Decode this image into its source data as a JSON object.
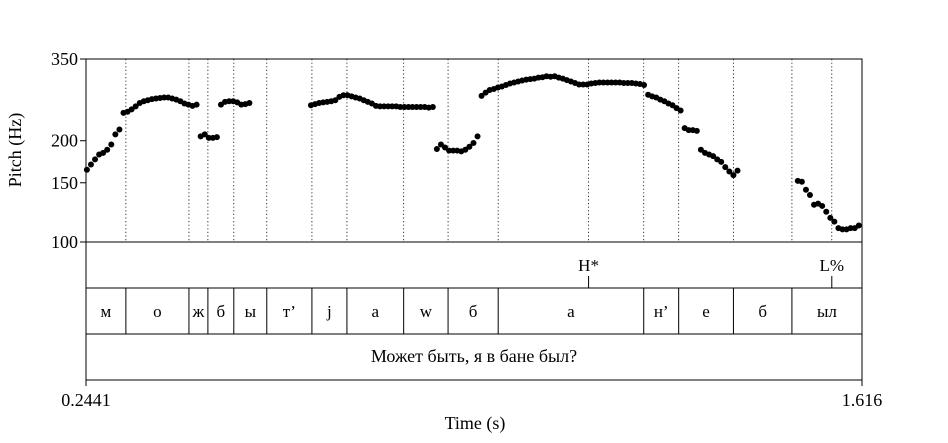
{
  "chart_data": {
    "type": "scatter",
    "ylabel": "Pitch (Hz)",
    "xlabel": "Time (s)",
    "xlim": [
      0.2441,
      1.616
    ],
    "ylim": [
      100,
      350
    ],
    "y_ticks": [
      "100",
      "150",
      "200",
      "350"
    ],
    "x_tick_labels": {
      "start": "0.2441",
      "end": "1.616"
    },
    "sentence": "Может быть, я в бане был?",
    "tones": [
      {
        "label": "H*",
        "time": 1.1326
      },
      {
        "label": "L%",
        "time": 1.5626
      }
    ],
    "segments": [
      {
        "label": "м",
        "start": 0.2441,
        "end": 0.3146
      },
      {
        "label": "о",
        "start": 0.3146,
        "end": 0.4261
      },
      {
        "label": "ж",
        "start": 0.4261,
        "end": 0.4596
      },
      {
        "label": "б",
        "start": 0.4596,
        "end": 0.5054
      },
      {
        "label": "ы",
        "start": 0.5054,
        "end": 0.5637
      },
      {
        "label": "т’",
        "start": 0.5637,
        "end": 0.6435
      },
      {
        "label": "j",
        "start": 0.6435,
        "end": 0.7054
      },
      {
        "label": "а",
        "start": 0.7054,
        "end": 0.8057
      },
      {
        "label": "w",
        "start": 0.8057,
        "end": 0.8842
      },
      {
        "label": "б",
        "start": 0.8842,
        "end": 0.9728
      },
      {
        "label": "а",
        "start": 0.9728,
        "end": 1.2301
      },
      {
        "label": "н’",
        "start": 1.2301,
        "end": 1.2919
      },
      {
        "label": "е",
        "start": 1.2919,
        "end": 1.3887
      },
      {
        "label": "б",
        "start": 1.3887,
        "end": 1.4921
      },
      {
        "label": "ыл",
        "start": 1.4921,
        "end": 1.616
      }
    ],
    "points": [
      [
        0.2457,
        164
      ],
      [
        0.2529,
        170
      ],
      [
        0.2601,
        176
      ],
      [
        0.2673,
        182
      ],
      [
        0.2744,
        184
      ],
      [
        0.2816,
        188
      ],
      [
        0.2888,
        195
      ],
      [
        0.296,
        209
      ],
      [
        0.3032,
        216
      ],
      [
        0.3104,
        242
      ],
      [
        0.3175,
        244
      ],
      [
        0.3247,
        248
      ],
      [
        0.3319,
        253
      ],
      [
        0.3391,
        259
      ],
      [
        0.3463,
        262
      ],
      [
        0.3534,
        264
      ],
      [
        0.3606,
        266
      ],
      [
        0.3678,
        267
      ],
      [
        0.375,
        268
      ],
      [
        0.3822,
        269
      ],
      [
        0.3894,
        269
      ],
      [
        0.3965,
        267
      ],
      [
        0.4037,
        265
      ],
      [
        0.4109,
        262
      ],
      [
        0.4181,
        258
      ],
      [
        0.4253,
        256
      ],
      [
        0.4324,
        254
      ],
      [
        0.4396,
        256
      ],
      [
        0.4468,
        206
      ],
      [
        0.454,
        209
      ],
      [
        0.4612,
        204
      ],
      [
        0.4684,
        204
      ],
      [
        0.4755,
        205
      ],
      [
        0.4827,
        256
      ],
      [
        0.4899,
        261
      ],
      [
        0.4971,
        262
      ],
      [
        0.5043,
        262
      ],
      [
        0.5114,
        260
      ],
      [
        0.5186,
        256
      ],
      [
        0.5258,
        257
      ],
      [
        0.533,
        259
      ],
      [
        0.6418,
        255
      ],
      [
        0.649,
        257
      ],
      [
        0.6562,
        259
      ],
      [
        0.6634,
        260
      ],
      [
        0.6705,
        261
      ],
      [
        0.6777,
        262
      ],
      [
        0.6849,
        264
      ],
      [
        0.6921,
        270
      ],
      [
        0.6993,
        273
      ],
      [
        0.7064,
        273
      ],
      [
        0.7136,
        271
      ],
      [
        0.7208,
        269
      ],
      [
        0.728,
        267
      ],
      [
        0.7352,
        264
      ],
      [
        0.7423,
        261
      ],
      [
        0.7495,
        258
      ],
      [
        0.7567,
        254
      ],
      [
        0.7639,
        253
      ],
      [
        0.7711,
        253
      ],
      [
        0.7783,
        253
      ],
      [
        0.7854,
        253
      ],
      [
        0.7926,
        253
      ],
      [
        0.7998,
        252
      ],
      [
        0.807,
        252
      ],
      [
        0.8142,
        252
      ],
      [
        0.8213,
        252
      ],
      [
        0.8285,
        252
      ],
      [
        0.8357,
        252
      ],
      [
        0.8429,
        252
      ],
      [
        0.8501,
        251
      ],
      [
        0.8573,
        252
      ],
      [
        0.8644,
        189
      ],
      [
        0.8716,
        195
      ],
      [
        0.8788,
        191
      ],
      [
        0.886,
        187
      ],
      [
        0.8932,
        187
      ],
      [
        0.9003,
        187
      ],
      [
        0.9075,
        186
      ],
      [
        0.9147,
        188
      ],
      [
        0.9219,
        192
      ],
      [
        0.9291,
        197
      ],
      [
        0.9363,
        206
      ],
      [
        0.9434,
        272
      ],
      [
        0.9506,
        278
      ],
      [
        0.9578,
        283
      ],
      [
        0.965,
        285
      ],
      [
        0.9722,
        288
      ],
      [
        0.9793,
        290
      ],
      [
        0.9865,
        293
      ],
      [
        0.9937,
        296
      ],
      [
        1.0009,
        298
      ],
      [
        1.0081,
        300
      ],
      [
        1.0152,
        302
      ],
      [
        1.0224,
        304
      ],
      [
        1.0296,
        305
      ],
      [
        1.0368,
        306
      ],
      [
        1.044,
        308
      ],
      [
        1.0512,
        309
      ],
      [
        1.0583,
        311
      ],
      [
        1.0655,
        310
      ],
      [
        1.0727,
        311
      ],
      [
        1.0799,
        308
      ],
      [
        1.0871,
        306
      ],
      [
        1.0942,
        303
      ],
      [
        1.1014,
        300
      ],
      [
        1.1086,
        297
      ],
      [
        1.1158,
        294
      ],
      [
        1.123,
        294
      ],
      [
        1.1301,
        294
      ],
      [
        1.1373,
        296
      ],
      [
        1.1445,
        297
      ],
      [
        1.1517,
        298
      ],
      [
        1.1589,
        298
      ],
      [
        1.1661,
        298
      ],
      [
        1.1732,
        298
      ],
      [
        1.1804,
        298
      ],
      [
        1.1876,
        298
      ],
      [
        1.1948,
        297
      ],
      [
        1.202,
        297
      ],
      [
        1.2091,
        297
      ],
      [
        1.2163,
        296
      ],
      [
        1.2235,
        295
      ],
      [
        1.2307,
        293
      ],
      [
        1.2379,
        274
      ],
      [
        1.245,
        271
      ],
      [
        1.2522,
        269
      ],
      [
        1.2594,
        265
      ],
      [
        1.2666,
        262
      ],
      [
        1.2738,
        258
      ],
      [
        1.281,
        255
      ],
      [
        1.2881,
        250
      ],
      [
        1.2953,
        246
      ],
      [
        1.3025,
        218
      ],
      [
        1.3097,
        215
      ],
      [
        1.3169,
        215
      ],
      [
        1.324,
        214
      ],
      [
        1.3312,
        188
      ],
      [
        1.3384,
        184
      ],
      [
        1.3456,
        182
      ],
      [
        1.3528,
        180
      ],
      [
        1.36,
        176
      ],
      [
        1.3671,
        173
      ],
      [
        1.3743,
        167
      ],
      [
        1.3815,
        162
      ],
      [
        1.3887,
        158
      ],
      [
        1.3959,
        163
      ],
      [
        1.5025,
        152
      ],
      [
        1.5097,
        151
      ],
      [
        1.5169,
        143
      ],
      [
        1.524,
        138
      ],
      [
        1.5312,
        129
      ],
      [
        1.5384,
        130
      ],
      [
        1.5456,
        128
      ],
      [
        1.5528,
        123
      ],
      [
        1.56,
        118
      ],
      [
        1.5671,
        115
      ],
      [
        1.5743,
        110
      ],
      [
        1.5815,
        109
      ],
      [
        1.5887,
        109
      ],
      [
        1.5959,
        110
      ],
      [
        1.6031,
        110
      ],
      [
        1.6103,
        112
      ]
    ]
  }
}
